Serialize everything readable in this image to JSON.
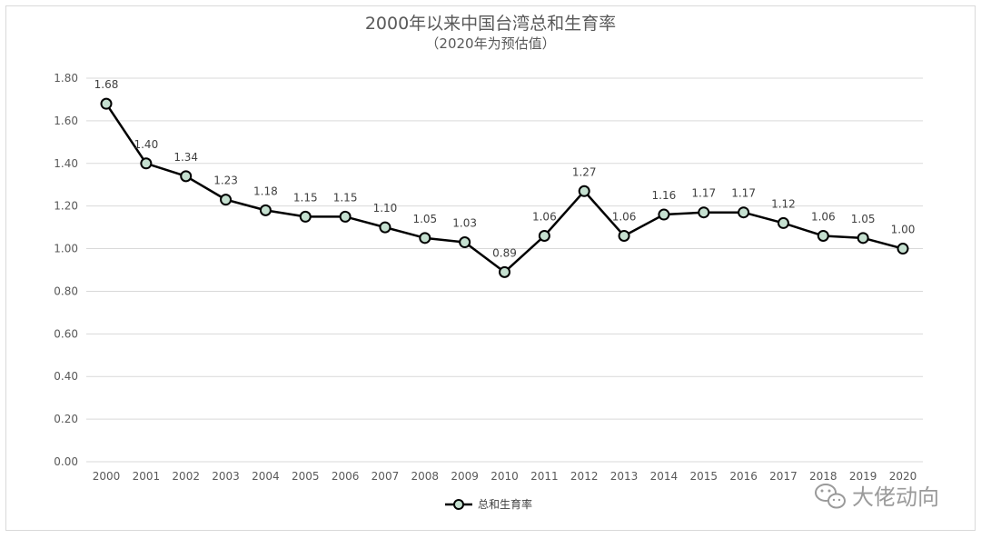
{
  "chart_data": {
    "type": "line",
    "title": "2000年以来中国台湾总和生育率",
    "subtitle": "（2020年为预估值）",
    "categories": [
      "2000",
      "2001",
      "2002",
      "2003",
      "2004",
      "2005",
      "2006",
      "2007",
      "2008",
      "2009",
      "2010",
      "2011",
      "2012",
      "2013",
      "2014",
      "2015",
      "2016",
      "2017",
      "2018",
      "2019",
      "2020"
    ],
    "series": [
      {
        "name": "总和生育率",
        "values": [
          1.68,
          1.4,
          1.34,
          1.23,
          1.18,
          1.15,
          1.15,
          1.1,
          1.05,
          1.03,
          0.89,
          1.06,
          1.27,
          1.06,
          1.16,
          1.17,
          1.17,
          1.12,
          1.06,
          1.05,
          1.0
        ],
        "labels": [
          "1.68",
          "1.40",
          "1.34",
          "1.23",
          "1.18",
          "1.15",
          "1.15",
          "1.10",
          "1.05",
          "1.03",
          "0.89",
          "1.06",
          "1.27",
          "1.06",
          "1.16",
          "1.17",
          "1.17",
          "1.12",
          "1.06",
          "1.05",
          "1.00"
        ],
        "color": "#000000",
        "marker_fill": "#c5e0d0"
      }
    ],
    "ylim": [
      0,
      1.8
    ],
    "yticks": [
      "0.00",
      "0.20",
      "0.40",
      "0.60",
      "0.80",
      "1.00",
      "1.20",
      "1.40",
      "1.60",
      "1.80"
    ],
    "grid": true,
    "legend_position": "bottom",
    "xlabel": "",
    "ylabel": ""
  },
  "watermark": {
    "text": "大佬动向",
    "icon": "wechat-icon"
  }
}
